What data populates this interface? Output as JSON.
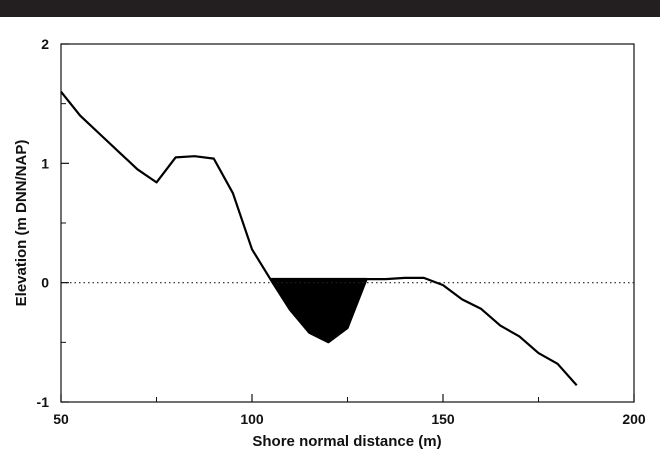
{
  "chart_data": {
    "type": "line",
    "title": "",
    "xlabel": "Shore normal distance (m)",
    "ylabel": "Elevation (m DNN/NAP)",
    "xlim": [
      50,
      200
    ],
    "ylim": [
      -1,
      2
    ],
    "x_ticks": [
      50,
      100,
      150,
      200
    ],
    "y_ticks": [
      2,
      1,
      0,
      -1
    ],
    "x_minor_ticks": [
      75,
      125,
      175
    ],
    "y_minor_ticks": [
      1.5,
      0.5,
      -0.5
    ],
    "grid": false,
    "reference_line": {
      "y": 0,
      "style": "dotted"
    },
    "filled_region": {
      "fill_level": 0.04,
      "x_range": [
        105,
        130
      ],
      "color": "#000000"
    },
    "series": [
      {
        "name": "",
        "color": "#000000",
        "x": [
          50,
          55,
          60,
          65,
          70,
          75,
          80,
          85,
          90,
          95,
          100,
          105,
          110,
          115,
          120,
          125,
          130,
          135,
          140,
          145,
          150,
          155,
          160,
          165,
          170,
          175,
          180,
          185
        ],
        "y": [
          1.6,
          1.4,
          1.25,
          1.1,
          0.95,
          0.84,
          1.05,
          1.06,
          1.04,
          0.75,
          0.28,
          0.02,
          -0.23,
          -0.42,
          -0.5,
          -0.38,
          0.03,
          0.03,
          0.04,
          0.04,
          -0.02,
          -0.14,
          -0.22,
          -0.36,
          -0.45,
          -0.59,
          -0.68,
          -0.86
        ]
      }
    ]
  }
}
